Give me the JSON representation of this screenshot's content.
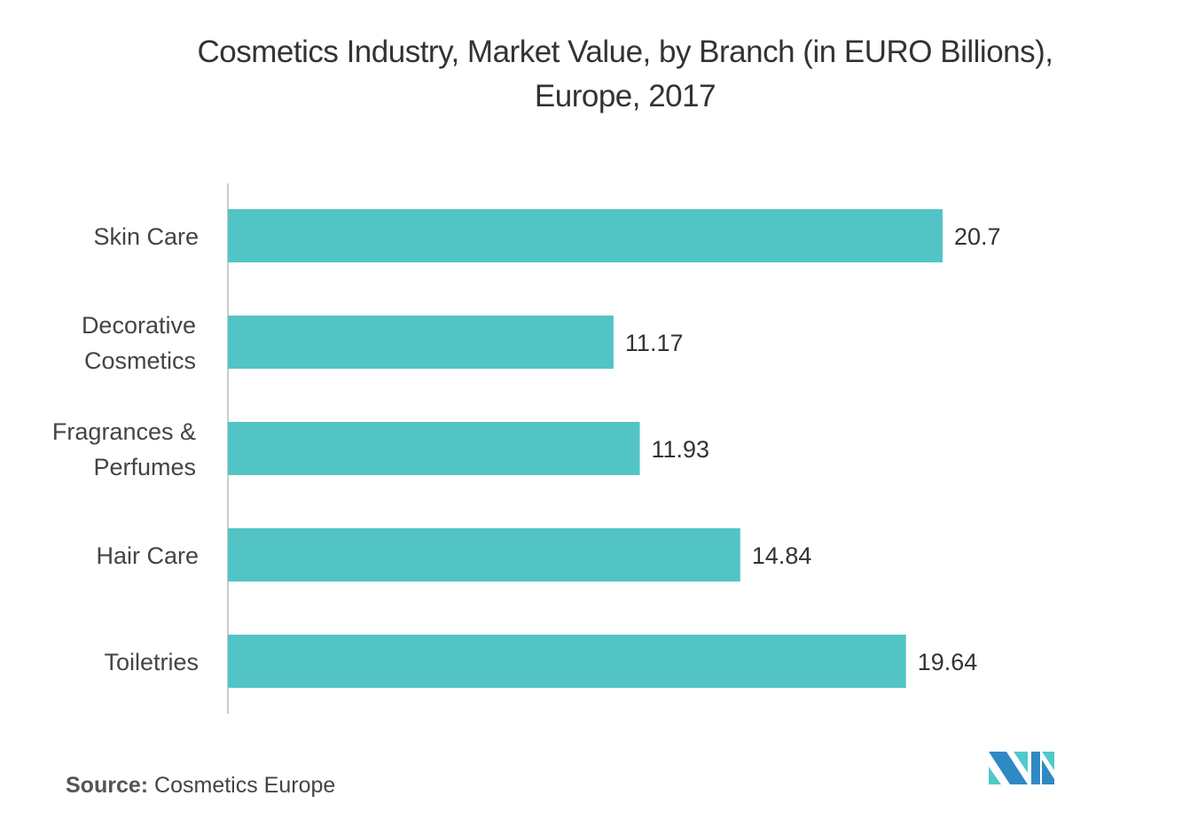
{
  "chart_data": {
    "type": "bar",
    "orientation": "horizontal",
    "title": "Cosmetics Industry, Market Value, by Branch (in EURO Billions), Europe, 2017",
    "categories": [
      "Skin Care",
      "Decorative Cosmetics",
      "Fragrances & Perfumes",
      "Hair Care",
      "Toiletries"
    ],
    "category_lines": [
      [
        "Skin Care"
      ],
      [
        "Decorative",
        "Cosmetics"
      ],
      [
        "Fragrances &",
        "Perfumes"
      ],
      [
        "Hair Care"
      ],
      [
        "Toiletries"
      ]
    ],
    "values": [
      20.7,
      11.17,
      11.93,
      14.84,
      19.64
    ],
    "labels": [
      "20.7",
      "11.17",
      "11.93",
      "14.84",
      "19.64"
    ],
    "xlim": [
      0,
      20.7
    ],
    "grid": false,
    "legend": "none",
    "bar_color": "#52C4C6",
    "xlabel": "",
    "ylabel": ""
  },
  "source": {
    "label": "Source:",
    "text": "Cosmetics Europe"
  },
  "logo": {
    "name": "Mordor Intelligence logo",
    "colors": [
      "#2F8AC4",
      "#4FC9CB"
    ]
  }
}
